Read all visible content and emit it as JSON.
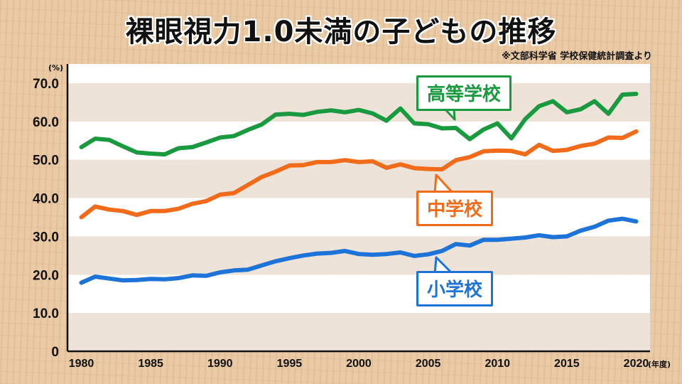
{
  "title": "裸眼視力1.0未満の子どもの推移",
  "source": "※文部科学省 学校保健統計調査より",
  "chart_data": {
    "type": "line",
    "ylabel": "(%)",
    "xlabel": "(年度)",
    "ylim": [
      0,
      70
    ],
    "xlim": [
      1979,
      2021
    ],
    "yticks": [
      "0",
      "10.0",
      "20.0",
      "30.0",
      "40.0",
      "50.0",
      "60.0",
      "70.0"
    ],
    "yticks_values": [
      0,
      10,
      20,
      30,
      40,
      50,
      60,
      70
    ],
    "xticks": [
      "1980",
      "1985",
      "1990",
      "1995",
      "2000",
      "2005",
      "2010",
      "2015",
      "2020"
    ],
    "xticks_values": [
      1980,
      1985,
      1990,
      1995,
      2000,
      2005,
      2010,
      2015,
      2020
    ],
    "background": "alternating horizontal bands",
    "series": [
      {
        "name": "高等学校",
        "color": "#1a9a3e",
        "x": [
          1980,
          1981,
          1982,
          1983,
          1984,
          1985,
          1986,
          1987,
          1988,
          1989,
          1990,
          1991,
          1992,
          1993,
          1994,
          1995,
          1996,
          1997,
          1998,
          1999,
          2000,
          2001,
          2002,
          2003,
          2004,
          2005,
          2006,
          2007,
          2008,
          2009,
          2010,
          2011,
          2012,
          2013,
          2014,
          2015,
          2016,
          2017,
          2018,
          2019,
          2020
        ],
        "values": [
          53.3,
          55.5,
          55.2,
          53.5,
          51.9,
          51.6,
          51.4,
          53.0,
          53.3,
          54.5,
          55.8,
          56.2,
          57.8,
          59.2,
          61.8,
          62.0,
          61.7,
          62.5,
          62.9,
          62.4,
          63.0,
          62.1,
          60.2,
          63.4,
          59.5,
          59.3,
          58.2,
          58.3,
          55.4,
          57.9,
          59.5,
          55.6,
          60.6,
          64.0,
          65.3,
          62.4,
          63.2,
          65.3,
          62.0,
          67.0,
          67.2
        ]
      },
      {
        "name": "中学校",
        "color": "#f26b1a",
        "x": [
          1980,
          1981,
          1982,
          1983,
          1984,
          1985,
          1986,
          1987,
          1988,
          1989,
          1990,
          1991,
          1992,
          1993,
          1994,
          1995,
          1996,
          1997,
          1998,
          1999,
          2000,
          2001,
          2002,
          2003,
          2004,
          2005,
          2006,
          2007,
          2008,
          2009,
          2010,
          2011,
          2012,
          2013,
          2014,
          2015,
          2016,
          2017,
          2018,
          2019,
          2020
        ],
        "values": [
          35.0,
          37.8,
          37.0,
          36.6,
          35.6,
          36.6,
          36.6,
          37.2,
          38.5,
          39.2,
          40.9,
          41.3,
          43.4,
          45.5,
          46.9,
          48.5,
          48.6,
          49.4,
          49.4,
          49.9,
          49.4,
          49.6,
          47.9,
          48.8,
          47.8,
          47.6,
          47.5,
          49.9,
          50.7,
          52.2,
          52.4,
          52.3,
          51.4,
          53.9,
          52.3,
          52.6,
          53.6,
          54.2,
          55.8,
          55.7,
          57.4
        ]
      },
      {
        "name": "小学校",
        "color": "#1e73d8",
        "x": [
          1980,
          1981,
          1982,
          1983,
          1984,
          1985,
          1986,
          1987,
          1988,
          1989,
          1990,
          1991,
          1992,
          1993,
          1994,
          1995,
          1996,
          1997,
          1998,
          1999,
          2000,
          2001,
          2002,
          2003,
          2004,
          2005,
          2006,
          2007,
          2008,
          2009,
          2010,
          2011,
          2012,
          2013,
          2014,
          2015,
          2016,
          2017,
          2018,
          2019,
          2020
        ],
        "values": [
          17.9,
          19.5,
          19.0,
          18.5,
          18.6,
          18.9,
          18.8,
          19.1,
          19.8,
          19.7,
          20.6,
          21.1,
          21.3,
          22.4,
          23.5,
          24.3,
          25.0,
          25.5,
          25.7,
          26.2,
          25.4,
          25.2,
          25.4,
          25.8,
          24.9,
          25.3,
          26.2,
          28.0,
          27.6,
          29.1,
          29.1,
          29.4,
          29.7,
          30.3,
          29.8,
          30.0,
          31.5,
          32.5,
          34.1,
          34.6,
          33.9
        ]
      }
    ]
  }
}
